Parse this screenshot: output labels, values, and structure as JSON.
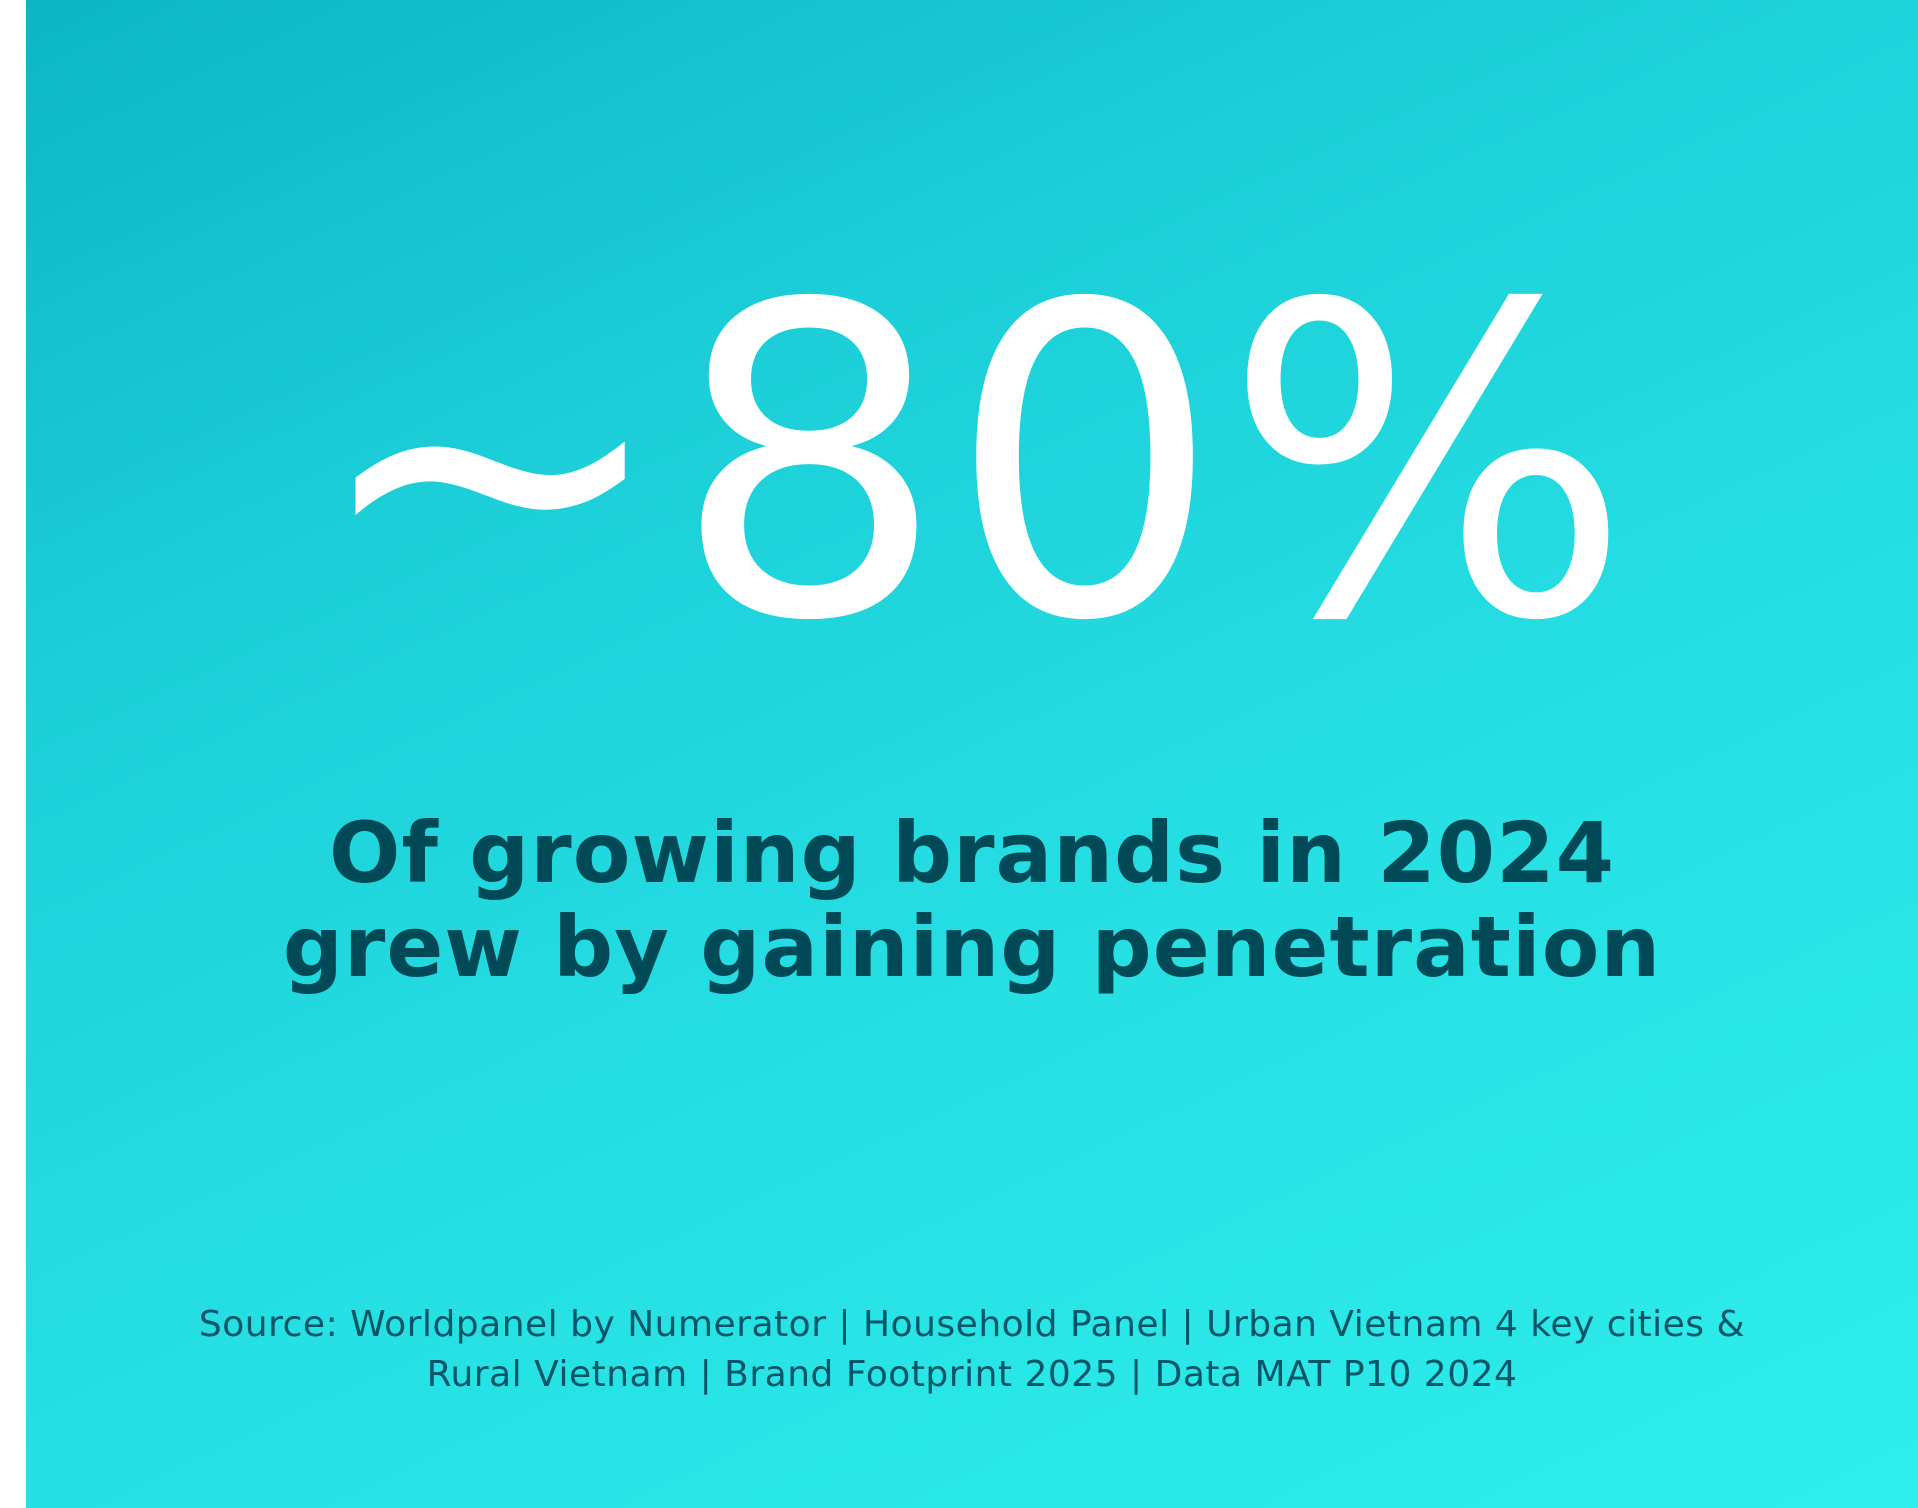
{
  "stat": {
    "value": "~80%"
  },
  "headline": {
    "line1": "Of growing brands in 2024",
    "line2": "grew by gaining penetration"
  },
  "source": {
    "line1": "Source: Worldpanel by Numerator | Household Panel | Urban Vietnam 4 key cities &",
    "line2": "Rural Vietnam | Brand Footprint 2025 | Data MAT P10 2024"
  },
  "colors": {
    "background_start": "#0bb7c4",
    "background_end": "#2eeeeb",
    "stat_text": "#ffffff",
    "headline_text": "#004a57",
    "source_text": "#045567"
  }
}
